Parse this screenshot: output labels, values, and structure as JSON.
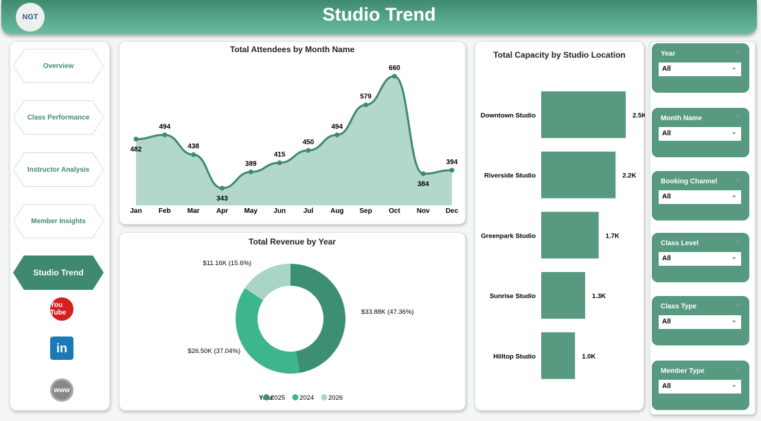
{
  "header": {
    "title": "Studio Trend",
    "logo_text": "NGT"
  },
  "nav": {
    "items": [
      {
        "label": "Overview"
      },
      {
        "label": "Class Performance"
      },
      {
        "label": "Instructor Analysis"
      },
      {
        "label": "Member Insights"
      },
      {
        "label": "Studio Trend",
        "active": true
      }
    ],
    "social": [
      {
        "icon": "youtube-icon",
        "label": "You Tube"
      },
      {
        "icon": "linkedin-icon",
        "label": "in"
      },
      {
        "icon": "www-icon",
        "label": "www"
      }
    ]
  },
  "colors": {
    "primary": "#3f8a6f",
    "filter": "#579a80",
    "area": "#b3d8ca",
    "y2025": "#3d8f73",
    "y2024": "#3db58d",
    "y2026": "#a8d5c4",
    "bar": "#579a80"
  },
  "chart_data": [
    {
      "type": "area",
      "title": "Total Attendees by Month Name",
      "categories": [
        "Jan",
        "Feb",
        "Mar",
        "Apr",
        "May",
        "Jun",
        "Jul",
        "Aug",
        "Sep",
        "Oct",
        "Nov",
        "Dec"
      ],
      "values": [
        482,
        494,
        438,
        343,
        389,
        415,
        450,
        494,
        579,
        660,
        384,
        394
      ]
    },
    {
      "type": "pie",
      "title": "Total Revenue by Year",
      "legend_title": "Year",
      "slices": [
        {
          "name": "2025",
          "value": 33.88,
          "label": "$33.88K (47.36%)",
          "pct": 47.36
        },
        {
          "name": "2024",
          "value": 26.5,
          "label": "$26.50K (37.04%)",
          "pct": 37.04
        },
        {
          "name": "2026",
          "value": 11.16,
          "label": "$11.16K (15.6%)",
          "pct": 15.6
        }
      ]
    },
    {
      "type": "bar",
      "title": "Total Capacity by Studio Location",
      "categories": [
        "Downtown Studio",
        "Riverside Studio",
        "Greenpark Studio",
        "Sunrise Studio",
        "Hilltop Studio"
      ],
      "values": [
        2.5,
        2.2,
        1.7,
        1.3,
        1.0
      ],
      "labels": [
        "2.5K",
        "2.2K",
        "1.7K",
        "1.3K",
        "1.0K"
      ]
    }
  ],
  "filters": [
    {
      "label": "Year",
      "value": "All"
    },
    {
      "label": "Month Name",
      "value": "All"
    },
    {
      "label": "Booking Channel",
      "value": "All"
    },
    {
      "label": "Class Level",
      "value": "All"
    },
    {
      "label": "Class Type",
      "value": "All"
    },
    {
      "label": "Member Type",
      "value": "All"
    }
  ]
}
